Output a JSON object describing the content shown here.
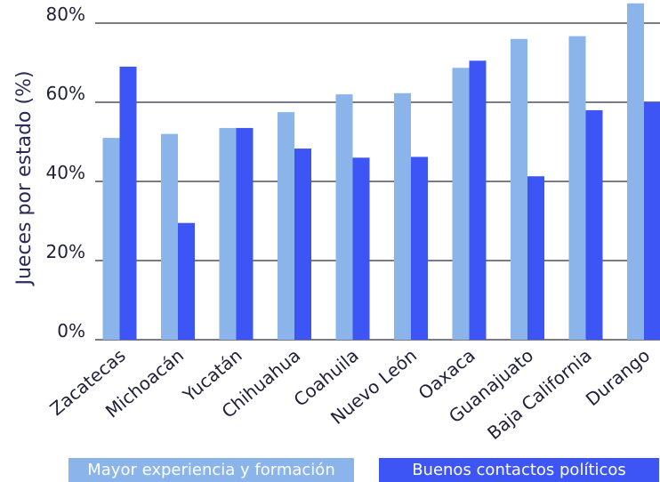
{
  "chart_data": {
    "type": "bar",
    "title": "",
    "xlabel": "",
    "ylabel": "Jueces por estado (%)",
    "ylim": [
      0,
      85
    ],
    "yticks": [
      0,
      20,
      40,
      60,
      80
    ],
    "ytick_labels": [
      "0%",
      "20%",
      "40%",
      "60%",
      "80%"
    ],
    "categories": [
      "Zacatecas",
      "Michoacán",
      "Yucatán",
      "Chihuahua",
      "Coahuila",
      "Nuevo León",
      "Oaxaca",
      "Guanajuato",
      "Baja California",
      "Durango"
    ],
    "series": [
      {
        "name": "Mayor experiencia y formación",
        "color": "#8ab4ea",
        "values": [
          51,
          52,
          53.5,
          57.5,
          62,
          62.3,
          68.7,
          76,
          76.7,
          85
        ]
      },
      {
        "name": "Buenos contactos políticos",
        "color": "#3d55f5",
        "values": [
          69,
          29.5,
          53.5,
          48.3,
          46,
          46.2,
          70.5,
          41.3,
          58,
          60
        ]
      }
    ],
    "grid": "horizontal",
    "legend_position": "bottom"
  }
}
